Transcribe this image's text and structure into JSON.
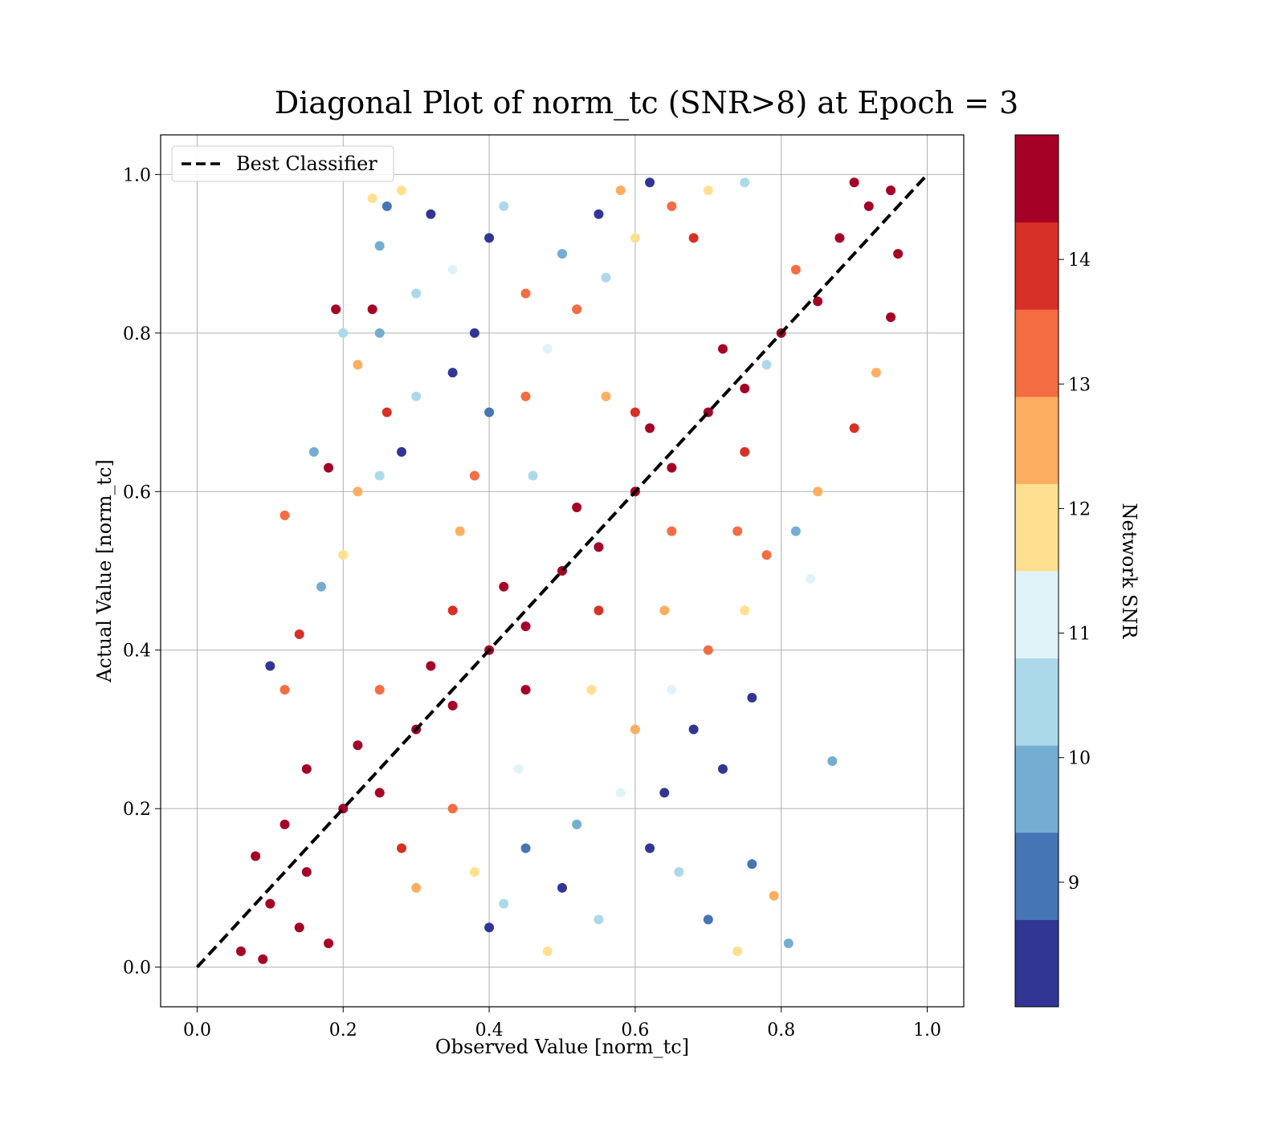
{
  "chart_data": {
    "type": "scatter",
    "title": "Diagonal Plot of norm_tc (SNR>8) at Epoch = 3",
    "xlabel": "Observed Value [norm_tc]",
    "ylabel": "Actual Value [norm_tc]",
    "xlim": [
      -0.05,
      1.05
    ],
    "ylim": [
      -0.05,
      1.05
    ],
    "x_ticks": [
      0.0,
      0.2,
      0.4,
      0.6,
      0.8,
      1.0
    ],
    "y_ticks": [
      0.0,
      0.2,
      0.4,
      0.6,
      0.8,
      1.0
    ],
    "x_tick_labels": [
      "0.0",
      "0.2",
      "0.4",
      "0.6",
      "0.8",
      "1.0"
    ],
    "y_tick_labels": [
      "0.0",
      "0.2",
      "0.4",
      "0.6",
      "0.8",
      "1.0"
    ],
    "grid": true,
    "legend": {
      "placement": "upper-left",
      "entries": [
        {
          "label": "Best Classifier",
          "style": "dashed",
          "color": "#000000"
        }
      ]
    },
    "reference_line": {
      "name": "Best Classifier",
      "x": [
        0.0,
        1.0
      ],
      "y": [
        0.0,
        1.0
      ],
      "color": "#000000",
      "style": "dashed"
    },
    "colorbar": {
      "label": "Network SNR",
      "range": [
        8.0,
        15.0
      ],
      "tick_values": [
        9,
        10,
        11,
        12,
        13,
        14
      ],
      "tick_labels": [
        "9",
        "10",
        "11",
        "12",
        "13",
        "14"
      ],
      "colors": [
        "#313695",
        "#4575b4",
        "#74add1",
        "#abd9e9",
        "#e0f3f8",
        "#fee090",
        "#fdae61",
        "#f46d43",
        "#d73027",
        "#a50026"
      ]
    },
    "points": [
      {
        "x": 0.1,
        "y": 0.08,
        "snr": 15.0
      },
      {
        "x": 0.15,
        "y": 0.12,
        "snr": 14.8
      },
      {
        "x": 0.12,
        "y": 0.18,
        "snr": 15.0
      },
      {
        "x": 0.2,
        "y": 0.2,
        "snr": 14.9
      },
      {
        "x": 0.25,
        "y": 0.22,
        "snr": 15.0
      },
      {
        "x": 0.22,
        "y": 0.28,
        "snr": 14.6
      },
      {
        "x": 0.3,
        "y": 0.3,
        "snr": 15.0
      },
      {
        "x": 0.35,
        "y": 0.33,
        "snr": 14.7
      },
      {
        "x": 0.32,
        "y": 0.38,
        "snr": 15.0
      },
      {
        "x": 0.4,
        "y": 0.4,
        "snr": 15.0
      },
      {
        "x": 0.45,
        "y": 0.43,
        "snr": 14.8
      },
      {
        "x": 0.42,
        "y": 0.48,
        "snr": 15.0
      },
      {
        "x": 0.5,
        "y": 0.5,
        "snr": 15.0
      },
      {
        "x": 0.55,
        "y": 0.53,
        "snr": 14.9
      },
      {
        "x": 0.52,
        "y": 0.58,
        "snr": 15.0
      },
      {
        "x": 0.6,
        "y": 0.6,
        "snr": 15.0
      },
      {
        "x": 0.65,
        "y": 0.63,
        "snr": 14.7
      },
      {
        "x": 0.62,
        "y": 0.68,
        "snr": 15.0
      },
      {
        "x": 0.7,
        "y": 0.7,
        "snr": 15.0
      },
      {
        "x": 0.75,
        "y": 0.73,
        "snr": 14.8
      },
      {
        "x": 0.72,
        "y": 0.78,
        "snr": 15.0
      },
      {
        "x": 0.8,
        "y": 0.8,
        "snr": 15.0
      },
      {
        "x": 0.85,
        "y": 0.84,
        "snr": 15.0
      },
      {
        "x": 0.88,
        "y": 0.92,
        "snr": 15.0
      },
      {
        "x": 0.92,
        "y": 0.96,
        "snr": 15.0
      },
      {
        "x": 0.9,
        "y": 0.99,
        "snr": 14.9
      },
      {
        "x": 0.95,
        "y": 0.98,
        "snr": 15.0
      },
      {
        "x": 0.06,
        "y": 0.02,
        "snr": 15.0
      },
      {
        "x": 0.09,
        "y": 0.01,
        "snr": 14.9
      },
      {
        "x": 0.14,
        "y": 0.05,
        "snr": 15.0
      },
      {
        "x": 0.18,
        "y": 0.03,
        "snr": 14.5
      },
      {
        "x": 0.08,
        "y": 0.14,
        "snr": 14.9
      },
      {
        "x": 0.28,
        "y": 0.15,
        "snr": 14.0
      },
      {
        "x": 0.35,
        "y": 0.2,
        "snr": 13.6
      },
      {
        "x": 0.3,
        "y": 0.1,
        "snr": 12.6
      },
      {
        "x": 0.38,
        "y": 0.12,
        "snr": 11.5
      },
      {
        "x": 0.42,
        "y": 0.08,
        "snr": 10.4
      },
      {
        "x": 0.45,
        "y": 0.15,
        "snr": 9.3
      },
      {
        "x": 0.4,
        "y": 0.05,
        "snr": 8.5
      },
      {
        "x": 0.5,
        "y": 0.1,
        "snr": 8.3
      },
      {
        "x": 0.55,
        "y": 0.06,
        "snr": 10.2
      },
      {
        "x": 0.48,
        "y": 0.02,
        "snr": 12.1
      },
      {
        "x": 0.52,
        "y": 0.18,
        "snr": 9.7
      },
      {
        "x": 0.58,
        "y": 0.22,
        "snr": 11.2
      },
      {
        "x": 0.6,
        "y": 0.3,
        "snr": 12.8
      },
      {
        "x": 0.65,
        "y": 0.35,
        "snr": 10.8
      },
      {
        "x": 0.7,
        "y": 0.4,
        "snr": 13.2
      },
      {
        "x": 0.68,
        "y": 0.3,
        "snr": 8.4
      },
      {
        "x": 0.75,
        "y": 0.45,
        "snr": 11.6
      },
      {
        "x": 0.78,
        "y": 0.52,
        "snr": 13.4
      },
      {
        "x": 0.82,
        "y": 0.55,
        "snr": 9.4
      },
      {
        "x": 0.85,
        "y": 0.6,
        "snr": 12.3
      },
      {
        "x": 0.9,
        "y": 0.68,
        "snr": 13.9
      },
      {
        "x": 0.93,
        "y": 0.75,
        "snr": 12.7
      },
      {
        "x": 0.95,
        "y": 0.82,
        "snr": 14.3
      },
      {
        "x": 0.96,
        "y": 0.9,
        "snr": 14.6
      },
      {
        "x": 0.62,
        "y": 0.15,
        "snr": 8.6
      },
      {
        "x": 0.66,
        "y": 0.12,
        "snr": 10.6
      },
      {
        "x": 0.7,
        "y": 0.06,
        "snr": 9.2
      },
      {
        "x": 0.74,
        "y": 0.02,
        "snr": 12.2
      },
      {
        "x": 0.76,
        "y": 0.13,
        "snr": 9.1
      },
      {
        "x": 0.81,
        "y": 0.03,
        "snr": 9.6
      },
      {
        "x": 0.87,
        "y": 0.26,
        "snr": 9.8
      },
      {
        "x": 0.76,
        "y": 0.34,
        "snr": 8.2
      },
      {
        "x": 0.72,
        "y": 0.25,
        "snr": 8.3
      },
      {
        "x": 0.79,
        "y": 0.09,
        "snr": 12.4
      },
      {
        "x": 0.84,
        "y": 0.49,
        "snr": 11.1
      },
      {
        "x": 0.64,
        "y": 0.22,
        "snr": 8.5
      },
      {
        "x": 0.15,
        "y": 0.25,
        "snr": 14.5
      },
      {
        "x": 0.12,
        "y": 0.35,
        "snr": 13.3
      },
      {
        "x": 0.1,
        "y": 0.38,
        "snr": 8.6
      },
      {
        "x": 0.14,
        "y": 0.42,
        "snr": 13.8
      },
      {
        "x": 0.17,
        "y": 0.48,
        "snr": 9.4
      },
      {
        "x": 0.2,
        "y": 0.52,
        "snr": 12.2
      },
      {
        "x": 0.12,
        "y": 0.57,
        "snr": 13.0
      },
      {
        "x": 0.22,
        "y": 0.6,
        "snr": 12.6
      },
      {
        "x": 0.25,
        "y": 0.62,
        "snr": 10.3
      },
      {
        "x": 0.18,
        "y": 0.63,
        "snr": 14.9
      },
      {
        "x": 0.16,
        "y": 0.65,
        "snr": 9.9
      },
      {
        "x": 0.28,
        "y": 0.65,
        "snr": 8.5
      },
      {
        "x": 0.26,
        "y": 0.7,
        "snr": 13.7
      },
      {
        "x": 0.3,
        "y": 0.72,
        "snr": 10.5
      },
      {
        "x": 0.22,
        "y": 0.76,
        "snr": 12.3
      },
      {
        "x": 0.35,
        "y": 0.75,
        "snr": 8.4
      },
      {
        "x": 0.2,
        "y": 0.8,
        "snr": 10.2
      },
      {
        "x": 0.25,
        "y": 0.8,
        "snr": 9.5
      },
      {
        "x": 0.19,
        "y": 0.83,
        "snr": 14.8
      },
      {
        "x": 0.24,
        "y": 0.83,
        "snr": 14.7
      },
      {
        "x": 0.3,
        "y": 0.85,
        "snr": 10.6
      },
      {
        "x": 0.35,
        "y": 0.88,
        "snr": 11.3
      },
      {
        "x": 0.25,
        "y": 0.91,
        "snr": 9.6
      },
      {
        "x": 0.26,
        "y": 0.96,
        "snr": 9.3
      },
      {
        "x": 0.32,
        "y": 0.95,
        "snr": 8.3
      },
      {
        "x": 0.24,
        "y": 0.97,
        "snr": 11.8
      },
      {
        "x": 0.28,
        "y": 0.98,
        "snr": 11.6
      },
      {
        "x": 0.4,
        "y": 0.92,
        "snr": 8.2
      },
      {
        "x": 0.42,
        "y": 0.96,
        "snr": 10.4
      },
      {
        "x": 0.45,
        "y": 0.85,
        "snr": 13.2
      },
      {
        "x": 0.38,
        "y": 0.8,
        "snr": 8.6
      },
      {
        "x": 0.48,
        "y": 0.78,
        "snr": 11.2
      },
      {
        "x": 0.4,
        "y": 0.7,
        "snr": 9.1
      },
      {
        "x": 0.45,
        "y": 0.72,
        "snr": 12.9
      },
      {
        "x": 0.38,
        "y": 0.62,
        "snr": 13.6
      },
      {
        "x": 0.5,
        "y": 0.9,
        "snr": 9.8
      },
      {
        "x": 0.55,
        "y": 0.95,
        "snr": 8.4
      },
      {
        "x": 0.58,
        "y": 0.98,
        "snr": 12.5
      },
      {
        "x": 0.6,
        "y": 0.92,
        "snr": 11.5
      },
      {
        "x": 0.62,
        "y": 0.99,
        "snr": 8.3
      },
      {
        "x": 0.52,
        "y": 0.83,
        "snr": 13.5
      },
      {
        "x": 0.56,
        "y": 0.87,
        "snr": 10.2
      },
      {
        "x": 0.65,
        "y": 0.96,
        "snr": 13.1
      },
      {
        "x": 0.68,
        "y": 0.92,
        "snr": 14.2
      },
      {
        "x": 0.7,
        "y": 0.98,
        "snr": 12.0
      },
      {
        "x": 0.75,
        "y": 0.99,
        "snr": 10.5
      },
      {
        "x": 0.6,
        "y": 0.7,
        "snr": 14.2
      },
      {
        "x": 0.35,
        "y": 0.45,
        "snr": 14.1
      },
      {
        "x": 0.25,
        "y": 0.35,
        "snr": 13.4
      },
      {
        "x": 0.55,
        "y": 0.45,
        "snr": 13.9
      },
      {
        "x": 0.45,
        "y": 0.35,
        "snr": 14.3
      },
      {
        "x": 0.65,
        "y": 0.55,
        "snr": 13.5
      },
      {
        "x": 0.75,
        "y": 0.65,
        "snr": 14.0
      },
      {
        "x": 0.78,
        "y": 0.76,
        "snr": 10.2
      },
      {
        "x": 0.82,
        "y": 0.88,
        "snr": 13.0
      },
      {
        "x": 0.36,
        "y": 0.55,
        "snr": 12.3
      },
      {
        "x": 0.46,
        "y": 0.62,
        "snr": 10.4
      },
      {
        "x": 0.56,
        "y": 0.72,
        "snr": 12.7
      },
      {
        "x": 0.44,
        "y": 0.25,
        "snr": 10.8
      },
      {
        "x": 0.54,
        "y": 0.35,
        "snr": 11.7
      },
      {
        "x": 0.64,
        "y": 0.45,
        "snr": 12.5
      },
      {
        "x": 0.74,
        "y": 0.55,
        "snr": 13.2
      }
    ]
  }
}
